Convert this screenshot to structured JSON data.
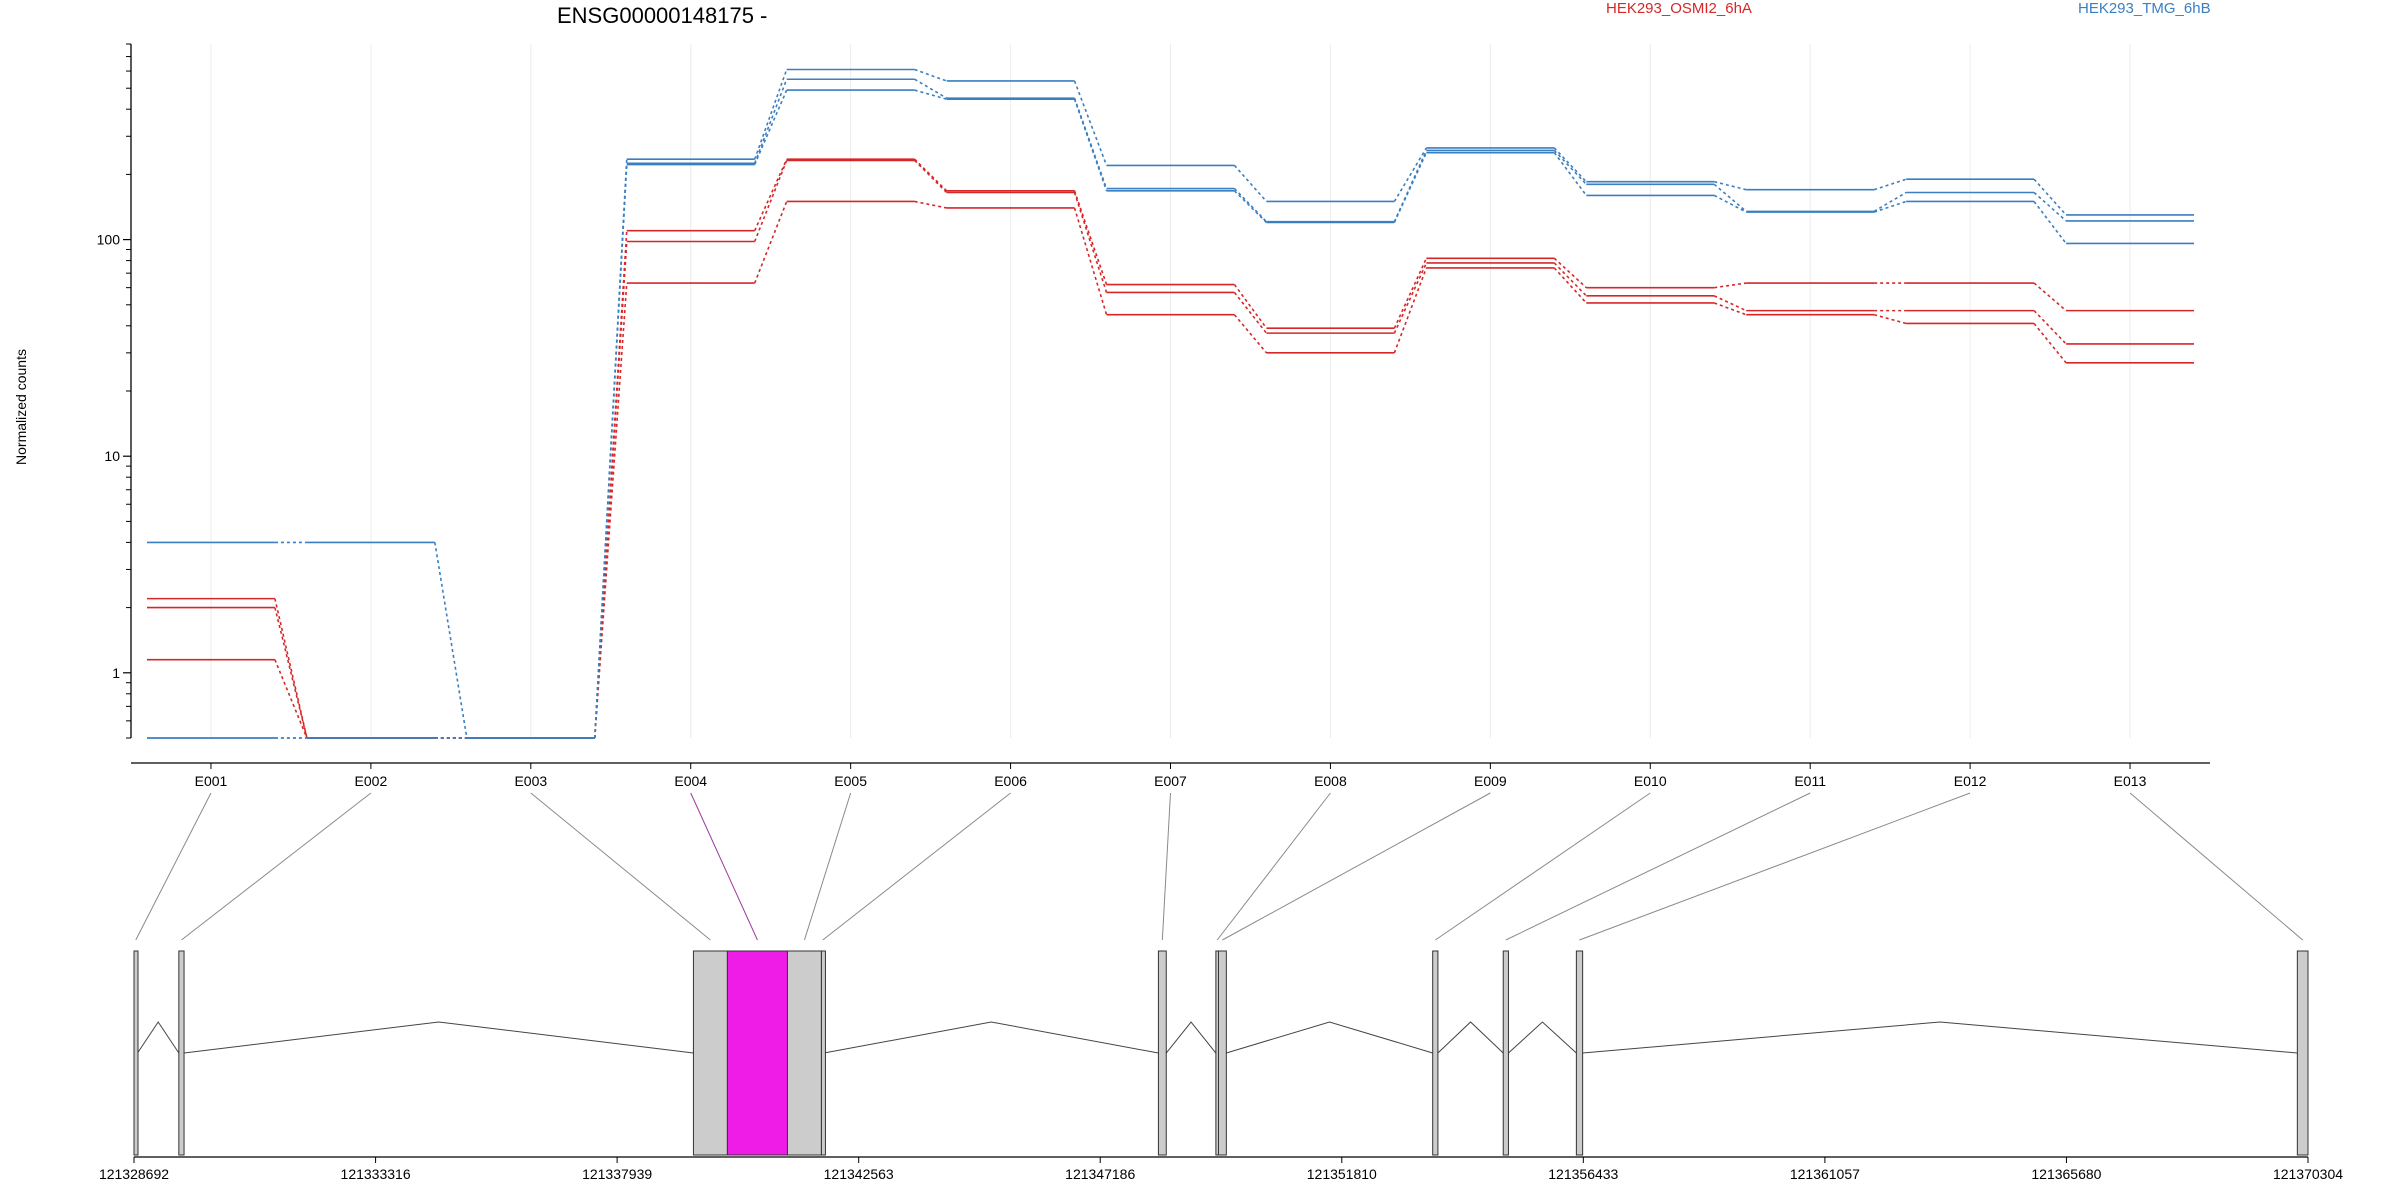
{
  "chart_data": {
    "type": "line",
    "title": "ENSG00000148175 -",
    "ylabel": "Normalized counts",
    "yscale": "log",
    "ylim": [
      0.5,
      800
    ],
    "yticks": [
      {
        "value": 1,
        "label": "1"
      },
      {
        "value": 10,
        "label": "10"
      },
      {
        "value": 100,
        "label": "100"
      }
    ],
    "categories": [
      "E001",
      "E002",
      "E003",
      "E004",
      "E005",
      "E006",
      "E007",
      "E008",
      "E009",
      "E010",
      "E011",
      "E012",
      "E013"
    ],
    "legend": [
      {
        "name": "HEK293_OSMI2_6hA",
        "color": "#d62728"
      },
      {
        "name": "HEK293_TMG_6hB",
        "color": "#3a7fc1"
      }
    ],
    "series": [
      {
        "group": "HEK293_OSMI2_6hA",
        "color": "#d62728",
        "values": [
          2.2,
          0.5,
          0.5,
          110,
          235,
          168,
          62,
          39,
          82,
          60,
          63,
          63,
          47
        ]
      },
      {
        "group": "HEK293_OSMI2_6hA",
        "color": "#d62728",
        "values": [
          2.0,
          0.5,
          0.5,
          98,
          232,
          165,
          57,
          37,
          78,
          55,
          47,
          47,
          33
        ]
      },
      {
        "group": "HEK293_OSMI2_6hA",
        "color": "#d62728",
        "values": [
          1.15,
          0.5,
          0.5,
          63,
          150,
          140,
          45,
          30,
          74,
          51,
          45,
          41,
          27
        ]
      },
      {
        "group": "HEK293_TMG_6hB",
        "color": "#3a7fc1",
        "values": [
          4.0,
          4.0,
          0.5,
          235,
          610,
          540,
          220,
          150,
          265,
          185,
          170,
          190,
          130
        ]
      },
      {
        "group": "HEK293_TMG_6hB",
        "color": "#3a7fc1",
        "values": [
          0.5,
          0.5,
          0.5,
          225,
          550,
          450,
          172,
          121,
          258,
          180,
          135,
          165,
          122
        ]
      },
      {
        "group": "HEK293_TMG_6hB",
        "color": "#3a7fc1",
        "values": [
          0.5,
          0.5,
          0.5,
          222,
          490,
          445,
          168,
          120,
          252,
          160,
          134,
          150,
          96
        ]
      }
    ],
    "gene_model": {
      "coord_start": 121328692,
      "coord_end": 121370304,
      "coord_ticks": [
        121328692,
        121333316,
        121337939,
        121342563,
        121347186,
        121351810,
        121356433,
        121361057,
        121365680,
        121370304
      ],
      "highlight_color": "#ee1ce6",
      "exon_color": "#cccccc",
      "exons": [
        {
          "id": "E001",
          "start": 121328692,
          "end": 121328760
        },
        {
          "id": "E002",
          "start": 121329550,
          "end": 121329650
        },
        {
          "id": "E003",
          "start": 121339400,
          "end": 121340050
        },
        {
          "id": "E004",
          "start": 121340050,
          "end": 121341200
        },
        {
          "id": "E005",
          "start": 121341200,
          "end": 121341850
        },
        {
          "id": "E006",
          "start": 121341850,
          "end": 121341900
        },
        {
          "id": "E007",
          "start": 121348300,
          "end": 121348450
        },
        {
          "id": "E008",
          "start": 121349400,
          "end": 121349450
        },
        {
          "id": "E009",
          "start": 121349450,
          "end": 121349600
        },
        {
          "id": "E010",
          "start": 121353550,
          "end": 121353650
        },
        {
          "id": "E011",
          "start": 121354900,
          "end": 121355000
        },
        {
          "id": "E012",
          "start": 121356300,
          "end": 121356420
        },
        {
          "id": "E013",
          "start": 121370100,
          "end": 121370304
        }
      ],
      "highlighted_exon": "E004"
    }
  }
}
